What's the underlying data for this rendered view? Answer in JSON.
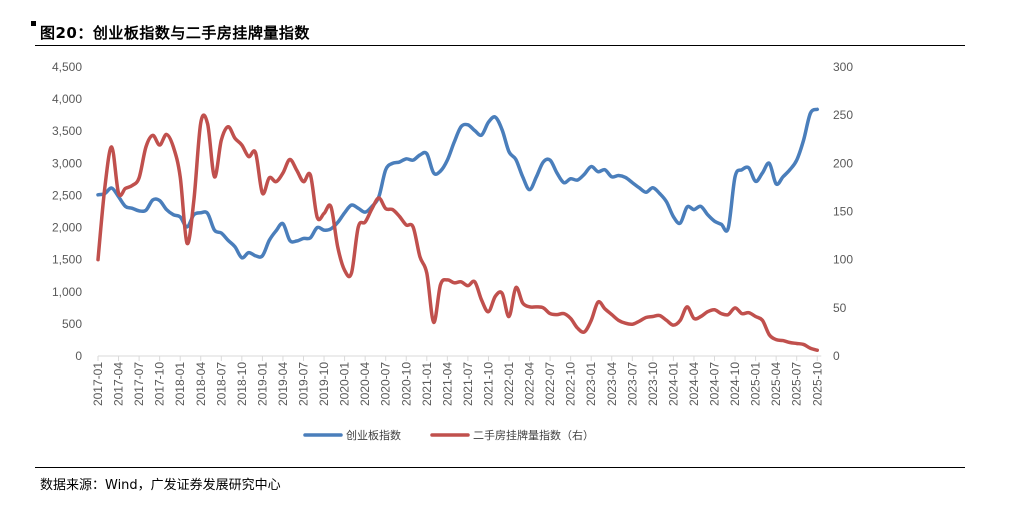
{
  "title": "图20：创业板指数与二手房挂牌量指数",
  "source": "数据来源：Wind，广发证券发展研究中心",
  "chart_data": {
    "type": "line",
    "title": "创业板指数与二手房挂牌量指数",
    "xlabel": "",
    "x_start": "2017-01",
    "x_tick_labels": [
      "2017-01",
      "2017-04",
      "2017-07",
      "2017-10",
      "2018-01",
      "2018-04",
      "2018-07",
      "2018-10",
      "2019-01",
      "2019-04",
      "2019-07",
      "2019-10",
      "2020-01",
      "2020-04",
      "2020-07",
      "2020-10",
      "2021-01",
      "2021-04",
      "2021-07",
      "2021-10",
      "2022-01",
      "2022-04",
      "2022-07",
      "2022-10",
      "2023-01",
      "2023-04",
      "2023-07",
      "2023-10",
      "2024-01",
      "2024-04",
      "2024-07",
      "2024-10",
      "2025-01",
      "2025-04",
      "2025-07",
      "2025-10"
    ],
    "y_left": {
      "range": [
        0,
        4500
      ],
      "ticks": [
        "0",
        "500",
        "1,000",
        "1,500",
        "2,000",
        "2,500",
        "3,000",
        "3,500",
        "4,000",
        "4,500"
      ]
    },
    "y_right": {
      "range": [
        0,
        300
      ],
      "ticks": [
        "0",
        "50",
        "100",
        "150",
        "200",
        "250",
        "300"
      ]
    },
    "grid": false,
    "legend_position": "bottom",
    "series": [
      {
        "name": "创业板指数",
        "axis": "left",
        "color": "#4a7ebb",
        "values": [
          2510,
          2530,
          2615,
          2480,
          2330,
          2300,
          2260,
          2270,
          2430,
          2420,
          2280,
          2200,
          2165,
          2010,
          2200,
          2230,
          2220,
          1960,
          1915,
          1800,
          1700,
          1530,
          1610,
          1560,
          1560,
          1800,
          1950,
          2060,
          1800,
          1790,
          1830,
          1840,
          2000,
          1960,
          1980,
          2080,
          2230,
          2350,
          2300,
          2240,
          2330,
          2480,
          2900,
          3000,
          3020,
          3070,
          3050,
          3130,
          3150,
          2850,
          2880,
          3050,
          3330,
          3570,
          3600,
          3510,
          3440,
          3640,
          3720,
          3520,
          3180,
          3060,
          2790,
          2590,
          2790,
          3020,
          3050,
          2850,
          2700,
          2760,
          2740,
          2830,
          2950,
          2870,
          2900,
          2790,
          2810,
          2780,
          2700,
          2620,
          2550,
          2620,
          2530,
          2400,
          2170,
          2070,
          2320,
          2280,
          2330,
          2200,
          2100,
          2050,
          1990,
          2790,
          2900,
          2930,
          2720,
          2850,
          3000,
          2680,
          2790,
          2900,
          3050,
          3360,
          3780,
          3840
        ]
      },
      {
        "name": "二手房挂牌量指数（右）",
        "axis": "right",
        "color": "#c0504d",
        "values": [
          100,
          175,
          217,
          169,
          174,
          177,
          185,
          217,
          229,
          219,
          230,
          217,
          186,
          117,
          162,
          242,
          241,
          186,
          224,
          238,
          226,
          219,
          207,
          211,
          169,
          185,
          181,
          190,
          204,
          193,
          181,
          188,
          144,
          148,
          155,
          113,
          89,
          86,
          134,
          139,
          153,
          164,
          153,
          152,
          145,
          136,
          134,
          103,
          86,
          35,
          74,
          79,
          76,
          77,
          73,
          77,
          58,
          46,
          62,
          65,
          41,
          71,
          55,
          51,
          51,
          50,
          44,
          43,
          44,
          39,
          29,
          25,
          37,
          56,
          49,
          43,
          37,
          34,
          33,
          36,
          40,
          41,
          42,
          37,
          32,
          37,
          51,
          39,
          41,
          46,
          48,
          44,
          43,
          50,
          44,
          45,
          41,
          37,
          22,
          17,
          16,
          14,
          13,
          12,
          8,
          6
        ]
      }
    ]
  }
}
